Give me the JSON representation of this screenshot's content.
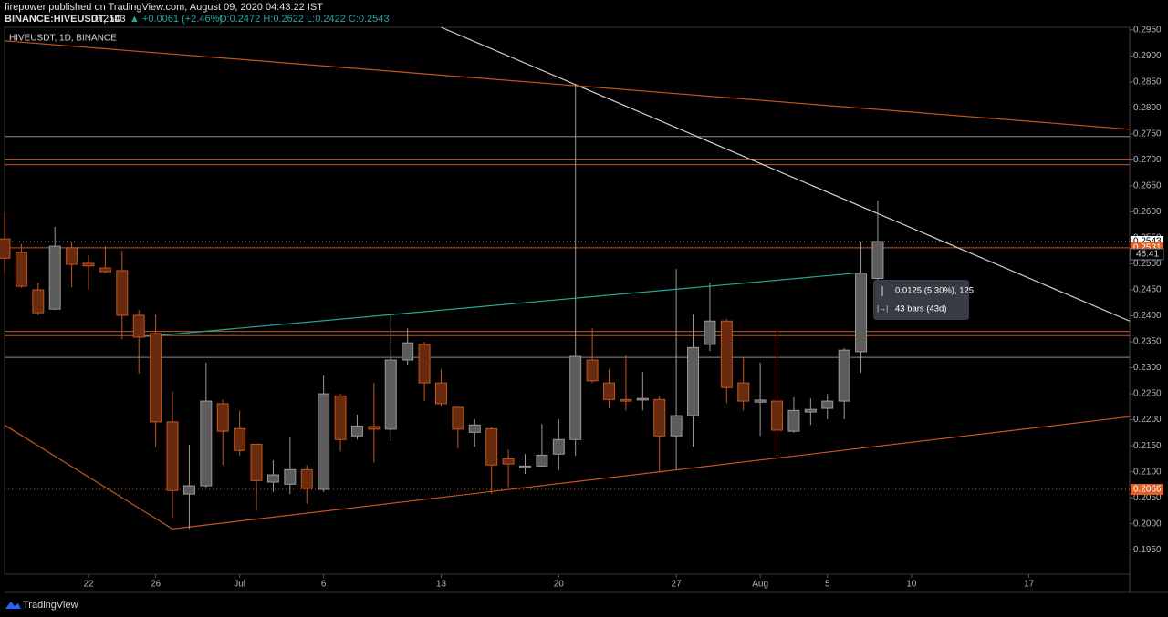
{
  "header": {
    "published": "firepower published on TradingView.com, August 09, 2020 04:43:22 IST",
    "symbol": "BINANCE:HIVEUSDT, 1D",
    "last": "0.2543",
    "change": "▲ +0.0061 (+2.46%)",
    "ohlc": "O:0.2472 H:0.2622 L:0.2422 C:0.2543"
  },
  "footer": {
    "brand": "TradingView"
  },
  "chart_data": {
    "type": "candlestick",
    "label": "HIVEUSDT, 1D, BINANCE",
    "x": [
      "2020-06-17",
      "2020-06-18",
      "2020-06-19",
      "2020-06-20",
      "2020-06-21",
      "2020-06-22",
      "2020-06-23",
      "2020-06-24",
      "2020-06-25",
      "2020-06-26",
      "2020-06-27",
      "2020-06-28",
      "2020-06-29",
      "2020-06-30",
      "2020-07-01",
      "2020-07-02",
      "2020-07-03",
      "2020-07-04",
      "2020-07-05",
      "2020-07-06",
      "2020-07-07",
      "2020-07-08",
      "2020-07-09",
      "2020-07-10",
      "2020-07-11",
      "2020-07-12",
      "2020-07-13",
      "2020-07-14",
      "2020-07-15",
      "2020-07-16",
      "2020-07-17",
      "2020-07-18",
      "2020-07-19",
      "2020-07-20",
      "2020-07-21",
      "2020-07-22",
      "2020-07-23",
      "2020-07-24",
      "2020-07-25",
      "2020-07-26",
      "2020-07-27",
      "2020-07-28",
      "2020-07-29",
      "2020-07-30",
      "2020-07-31",
      "2020-08-01",
      "2020-08-02",
      "2020-08-03",
      "2020-08-04",
      "2020-08-05",
      "2020-08-06",
      "2020-08-07",
      "2020-08-08"
    ],
    "open": [
      0.2548,
      0.2522,
      0.245,
      0.2413,
      0.2531,
      0.2501,
      0.2492,
      0.2487,
      0.2401,
      0.2366,
      0.2196,
      0.2057,
      0.2073,
      0.2231,
      0.2183,
      0.2153,
      0.208,
      0.2076,
      0.2104,
      0.2066,
      0.2246,
      0.2169,
      0.2187,
      0.2182,
      0.2315,
      0.2345,
      0.2271,
      0.2224,
      0.2176,
      0.2183,
      0.2125,
      0.2108,
      0.2111,
      0.2134,
      0.2162,
      0.2315,
      0.2271,
      0.2239,
      0.2238,
      0.2239,
      0.2169,
      0.2208,
      0.2345,
      0.239,
      0.2271,
      0.2234,
      0.2236,
      0.2178,
      0.2215,
      0.2222,
      0.2236,
      0.2331,
      0.2472
    ],
    "high": [
      0.2599,
      0.2538,
      0.2464,
      0.2571,
      0.2543,
      0.2517,
      0.2534,
      0.2525,
      0.2411,
      0.2403,
      0.2254,
      0.2152,
      0.231,
      0.2239,
      0.2218,
      0.2153,
      0.2122,
      0.2166,
      0.2113,
      0.2285,
      0.225,
      0.221,
      0.2271,
      0.2403,
      0.2376,
      0.235,
      0.2297,
      0.2224,
      0.2201,
      0.2187,
      0.2143,
      0.2134,
      0.2192,
      0.2201,
      0.2846,
      0.2376,
      0.2297,
      0.2324,
      0.2292,
      0.2245,
      0.249,
      0.2403,
      0.2464,
      0.2394,
      0.232,
      0.231,
      0.2376,
      0.2243,
      0.2241,
      0.225,
      0.2338,
      0.2543,
      0.2622
    ],
    "low": [
      0.2482,
      0.2454,
      0.2401,
      0.2411,
      0.2455,
      0.245,
      0.2482,
      0.2355,
      0.2289,
      0.2148,
      0.2011,
      0.199,
      0.2069,
      0.2113,
      0.2131,
      0.2025,
      0.2061,
      0.2057,
      0.2038,
      0.2061,
      0.2139,
      0.2162,
      0.2118,
      0.2159,
      0.2306,
      0.2236,
      0.2225,
      0.2145,
      0.2148,
      0.2057,
      0.2069,
      0.2096,
      0.211,
      0.2103,
      0.2131,
      0.2271,
      0.2222,
      0.2218,
      0.2218,
      0.2099,
      0.2104,
      0.2148,
      0.2332,
      0.2232,
      0.2218,
      0.2169,
      0.2131,
      0.2175,
      0.219,
      0.2201,
      0.2201,
      0.229,
      0.2422
    ],
    "close": [
      0.2511,
      0.2457,
      0.2406,
      0.2534,
      0.2499,
      0.2496,
      0.2485,
      0.2401,
      0.2359,
      0.2196,
      0.2064,
      0.2073,
      0.2236,
      0.2178,
      0.2141,
      0.2083,
      0.2094,
      0.2104,
      0.2068,
      0.225,
      0.2162,
      0.2188,
      0.2182,
      0.2315,
      0.2348,
      0.2271,
      0.2231,
      0.2182,
      0.219,
      0.2113,
      0.2115,
      0.2111,
      0.2132,
      0.2162,
      0.2322,
      0.2275,
      0.2239,
      0.2236,
      0.2241,
      0.2169,
      0.2208,
      0.2339,
      0.239,
      0.2262,
      0.2236,
      0.2238,
      0.218,
      0.2218,
      0.222,
      0.2236,
      0.2334,
      0.2482,
      0.2543
    ],
    "up_color": "#9a9a9a",
    "down_color": "#c4561f",
    "ylim": [
      0.1903,
      0.2955
    ],
    "yticks": [
      {
        "value": 0.195,
        "label": "0.1950"
      },
      {
        "value": 0.2,
        "label": "0.2000"
      },
      {
        "value": 0.205,
        "label": "0.2050"
      },
      {
        "value": 0.21,
        "label": "0.2100"
      },
      {
        "value": 0.215,
        "label": "0.2150"
      },
      {
        "value": 0.22,
        "label": "0.2200"
      },
      {
        "value": 0.225,
        "label": "0.2250"
      },
      {
        "value": 0.23,
        "label": "0.2300"
      },
      {
        "value": 0.235,
        "label": "0.2350"
      },
      {
        "value": 0.24,
        "label": "0.2400"
      },
      {
        "value": 0.245,
        "label": "0.2450"
      },
      {
        "value": 0.25,
        "label": "0.2500"
      },
      {
        "value": 0.255,
        "label": "0.2550"
      },
      {
        "value": 0.26,
        "label": "0.2600"
      },
      {
        "value": 0.265,
        "label": "0.2650"
      },
      {
        "value": 0.27,
        "label": "0.2700"
      },
      {
        "value": 0.275,
        "label": "0.2750"
      },
      {
        "value": 0.28,
        "label": "0.2800"
      },
      {
        "value": 0.285,
        "label": "0.2850"
      },
      {
        "value": 0.29,
        "label": "0.2900"
      },
      {
        "value": 0.295,
        "label": "0.2950"
      }
    ],
    "xlim": [
      "2020-06-17",
      "2020-08-23"
    ],
    "xticks": [
      {
        "value": "2020-06-22",
        "label": "22"
      },
      {
        "value": "2020-06-26",
        "label": "26"
      },
      {
        "value": "2020-07-01",
        "label": "Jul"
      },
      {
        "value": "2020-07-06",
        "label": "6"
      },
      {
        "value": "2020-07-13",
        "label": "13"
      },
      {
        "value": "2020-07-20",
        "label": "20"
      },
      {
        "value": "2020-07-27",
        "label": "27"
      },
      {
        "value": "2020-08-01",
        "label": "Aug"
      },
      {
        "value": "2020-08-05",
        "label": "5"
      },
      {
        "value": "2020-08-10",
        "label": "10"
      },
      {
        "value": "2020-08-17",
        "label": "17"
      }
    ],
    "grid": false,
    "levels": [
      {
        "value": 0.2745,
        "color": "#8a8a8a",
        "dash": false
      },
      {
        "value": 0.27,
        "color": "#c4561f",
        "dash": false
      },
      {
        "value": 0.2691,
        "color": "#c4561f",
        "dash": false
      },
      {
        "value": 0.2543,
        "color": "#8a8a8a",
        "dash": true
      },
      {
        "value": 0.2531,
        "color": "#c4561f",
        "dash": false
      },
      {
        "value": 0.237,
        "color": "#c4561f",
        "dash": false
      },
      {
        "value": 0.2362,
        "color": "#c4561f",
        "dash": false
      },
      {
        "value": 0.232,
        "color": "#8a8a8a",
        "dash": false
      },
      {
        "value": 0.2066,
        "color": "#c4561f",
        "dash": true
      }
    ],
    "trendlines": [
      {
        "color": "#d0d0d0",
        "points": [
          [
            "2020-07-13",
            0.2955
          ],
          [
            "2020-08-23",
            0.239
          ]
        ]
      },
      {
        "color": "#c4561f",
        "points": [
          [
            "2020-06-17",
            0.2929
          ],
          [
            "2020-08-23",
            0.2759
          ]
        ]
      },
      {
        "color": "#26a69a",
        "points": [
          [
            "2020-06-25",
            0.2359
          ],
          [
            "2020-08-07",
            0.2483
          ]
        ]
      },
      {
        "color": "#c4561f",
        "points": [
          [
            "2020-06-17",
            0.219
          ],
          [
            "2020-06-27",
            0.199
          ],
          [
            "2020-08-23",
            0.2206
          ]
        ]
      }
    ],
    "price_labels": [
      {
        "value": 0.2543,
        "label": "0.2543",
        "bg": "#ffffff",
        "fg": "#000000"
      },
      {
        "value": 0.2531,
        "label": "0.2531",
        "bg": "#e4601f",
        "fg": "#ffffff"
      },
      {
        "value": 0.2066,
        "label": "0.2066",
        "bg": "#e4601f",
        "fg": "#ffffff"
      }
    ],
    "countdown": "46:41",
    "measure": {
      "change": "0.0125 (5.30%), 125",
      "bars": "43 bars (43d)"
    }
  }
}
